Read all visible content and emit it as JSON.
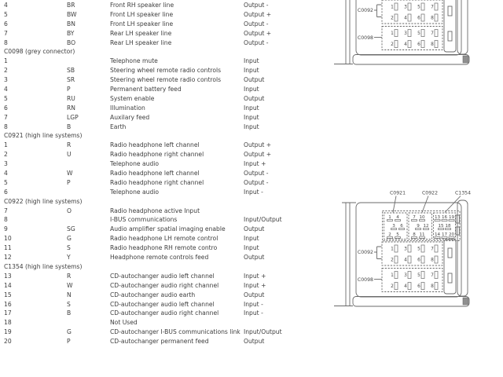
{
  "page": {
    "background": "#ffffff",
    "text_color": "#3d3d3d",
    "line_color": "#6a6a6a"
  },
  "table": {
    "columns": [
      "pin",
      "wire_colour",
      "description",
      "direction"
    ],
    "sections": [
      {
        "header": null,
        "rows": [
          {
            "pin": "4",
            "wire": "BR",
            "desc": "Front RH speaker line",
            "dir": "Output -"
          },
          {
            "pin": "5",
            "wire": "BW",
            "desc": "Front LH speaker line",
            "dir": "Output +"
          },
          {
            "pin": "6",
            "wire": "BN",
            "desc": "Front LH speaker line",
            "dir": "Output -"
          },
          {
            "pin": "7",
            "wire": "BY",
            "desc": "Rear LH speaker line",
            "dir": "Output +"
          },
          {
            "pin": "8",
            "wire": "BO",
            "desc": "Rear LH speaker line",
            "dir": "Output -"
          }
        ]
      },
      {
        "header": "C0098 (grey connector)",
        "rows": [
          {
            "pin": "1",
            "wire": "",
            "desc": "Telephone mute",
            "dir": "Input"
          },
          {
            "pin": "2",
            "wire": "SB",
            "desc": "Steering wheel remote radio controls",
            "dir": "Input"
          },
          {
            "pin": "3",
            "wire": "SR",
            "desc": "Steering wheel remote radio controls",
            "dir": "Output"
          },
          {
            "pin": "4",
            "wire": "P",
            "desc": "Permanent battery feed",
            "dir": "Input"
          },
          {
            "pin": "5",
            "wire": "RU",
            "desc": "System enable",
            "dir": "Output"
          },
          {
            "pin": "6",
            "wire": "RN",
            "desc": "Illumination",
            "dir": "Input"
          },
          {
            "pin": "7",
            "wire": "LGP",
            "desc": "Auxilary feed",
            "dir": "Input"
          },
          {
            "pin": "8",
            "wire": "B",
            "desc": "Earth",
            "dir": "Input"
          }
        ]
      },
      {
        "header": "C0921 (high line systems)",
        "rows": [
          {
            "pin": "1",
            "wire": "R",
            "desc": "Radio headphone left channel",
            "dir": "Output +"
          },
          {
            "pin": "2",
            "wire": "U",
            "desc": "Radio headphone right channel",
            "dir": "Output +"
          },
          {
            "pin": "3",
            "wire": "",
            "desc": "Telephone audio",
            "dir": "Input +"
          },
          {
            "pin": "4",
            "wire": "W",
            "desc": "Radio headphone left channel",
            "dir": "Output -"
          },
          {
            "pin": "5",
            "wire": "P",
            "desc": "Radio headphone right channel",
            "dir": "Output -"
          },
          {
            "pin": "6",
            "wire": "",
            "desc": "Telephone audio",
            "dir": "Input -"
          }
        ]
      },
      {
        "header": "C0922 (high line systems)",
        "rows": [
          {
            "pin": "7",
            "wire": "O",
            "desc": "Radio headphone active Input",
            "dir": ""
          },
          {
            "pin": "8",
            "wire": "",
            "desc": "I-BUS communications",
            "dir": "Input/Output"
          },
          {
            "pin": "9",
            "wire": "SG",
            "desc": "Audio amplifier spatial imaging enable",
            "dir": "Output"
          },
          {
            "pin": "10",
            "wire": "G",
            "desc": "Radio headphone LH remote control",
            "dir": "Input"
          },
          {
            "pin": "11",
            "wire": "S",
            "desc": "Radio headphone RH remote contro",
            "dir": "Input"
          },
          {
            "pin": "12",
            "wire": "Y",
            "desc": "Headphone remote controls feed",
            "dir": "Output"
          }
        ]
      },
      {
        "header": "C1354 (high line systems)",
        "rows": [
          {
            "pin": "13",
            "wire": "R",
            "desc": "CD-autochanger audio left channel",
            "dir": "Input +"
          },
          {
            "pin": "14",
            "wire": "W",
            "desc": "CD-autochanger audio right channel",
            "dir": "Input +"
          },
          {
            "pin": "15",
            "wire": "N",
            "desc": "CD-autochanger audio earth",
            "dir": "Output"
          },
          {
            "pin": "16",
            "wire": "S",
            "desc": "CD-autochanger audio left channel",
            "dir": "Input -"
          },
          {
            "pin": "17",
            "wire": "B",
            "desc": "CD-autochanger audio right channel",
            "dir": "Input -"
          },
          {
            "pin": "18",
            "wire": "",
            "desc": "Not Used",
            "dir": ""
          },
          {
            "pin": "19",
            "wire": "G",
            "desc": "CD-autochanger I-BUS communications link",
            "dir": "Input/Output"
          },
          {
            "pin": "20",
            "wire": "P",
            "desc": "CD-autochanger permanent feed",
            "dir": "Output"
          }
        ]
      }
    ]
  },
  "diagram": {
    "top_labels": [
      {
        "id": "c0921",
        "text": "C0921"
      },
      {
        "id": "c0922",
        "text": "C0922"
      },
      {
        "id": "c1354",
        "text": "C1354"
      }
    ],
    "group_connectors": [
      {
        "label": "C0921",
        "rows": [
          [
            "1",
            "4"
          ],
          [
            "3",
            "6"
          ],
          [
            "2",
            "5"
          ]
        ]
      },
      {
        "label": "C0922",
        "rows": [
          [
            "7",
            "10"
          ],
          [
            "9",
            "12"
          ],
          [
            "8",
            "11"
          ]
        ]
      },
      {
        "label": "C1354",
        "rows": [
          [
            "13",
            "16",
            "19"
          ],
          [
            "15",
            "18"
          ],
          [
            "14",
            "17",
            "20"
          ]
        ]
      }
    ],
    "block_connectors": [
      {
        "label": "C0092",
        "rows": [
          [
            "1",
            "3",
            "5",
            "7"
          ],
          [
            "2",
            "4",
            "6",
            "8"
          ]
        ]
      },
      {
        "label": "C0098",
        "rows": [
          [
            "1",
            "3",
            "5",
            "7"
          ],
          [
            "2",
            "4",
            "6",
            "8"
          ]
        ]
      }
    ]
  }
}
